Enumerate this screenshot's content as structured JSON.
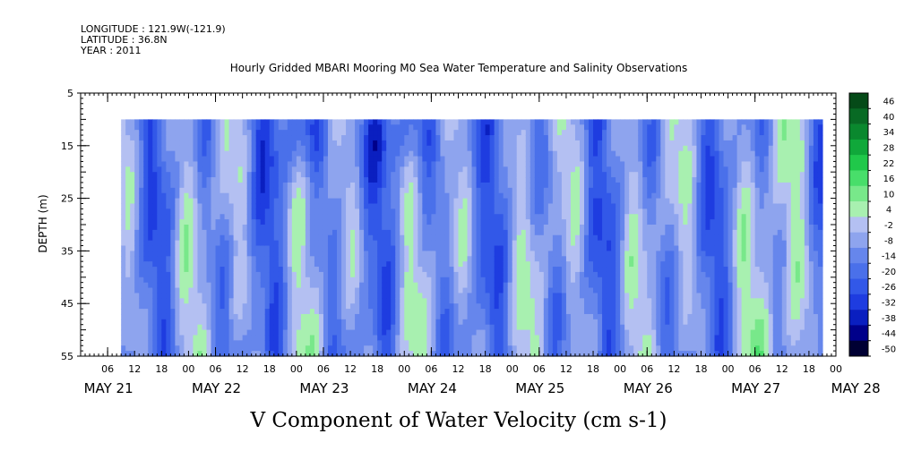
{
  "header": {
    "longitude": "LONGITUDE : 121.9W(-121.9)",
    "latitude": "LATITUDE : 36.8N",
    "year": "YEAR : 2011"
  },
  "chart_data": {
    "type": "heatmap",
    "title": "Hourly Gridded MBARI Mooring M0 Sea Water Temperature and Salinity Observations",
    "subtitle": "V Component of Water Velocity (cm s-1)",
    "ylabel": "DEPTH (m)",
    "xlabel": "",
    "y_ticks": [
      5,
      15,
      25,
      35,
      45,
      55
    ],
    "ylim": [
      5,
      55
    ],
    "y_inverted": true,
    "data_depth_range": [
      10,
      55
    ],
    "hour_ticks": [
      "06",
      "12",
      "18",
      "00",
      "06",
      "12",
      "18",
      "00",
      "06",
      "12",
      "18",
      "00",
      "06",
      "12",
      "18",
      "00",
      "06",
      "12",
      "18",
      "00",
      "06",
      "12",
      "18",
      "00",
      "06",
      "12",
      "18",
      "00"
    ],
    "day_labels": [
      "MAY 21",
      "MAY 22",
      "MAY 23",
      "MAY 24",
      "MAY 25",
      "MAY 26",
      "MAY 27",
      "MAY 28"
    ],
    "time_range_hours_from_may21": [
      -6,
      162
    ],
    "data_time_range_hours_from_may21": [
      3,
      159
    ],
    "colorbar": {
      "levels": [
        -50,
        -44,
        -38,
        -32,
        -26,
        -20,
        -14,
        -8,
        -2,
        4,
        10,
        16,
        22,
        28,
        34,
        40,
        46
      ],
      "labels": [
        "46",
        "40",
        "34",
        "28",
        "22",
        "16",
        "10",
        "4",
        "-2",
        "-8",
        "-14",
        "-20",
        "-26",
        "-32",
        "-38",
        "-44",
        "-50"
      ],
      "colors": [
        "#000033",
        "#00008a",
        "#0a1fc0",
        "#1e3ce0",
        "#3258e8",
        "#4a70ea",
        "#6686ec",
        "#8ea4ee",
        "#b4c0f2",
        "#a8f0b0",
        "#78e88a",
        "#48de6a",
        "#20c84a",
        "#10a83a",
        "#0a882e",
        "#086a24",
        "#054a18"
      ]
    },
    "grid": false,
    "legend": "right colorbar"
  }
}
